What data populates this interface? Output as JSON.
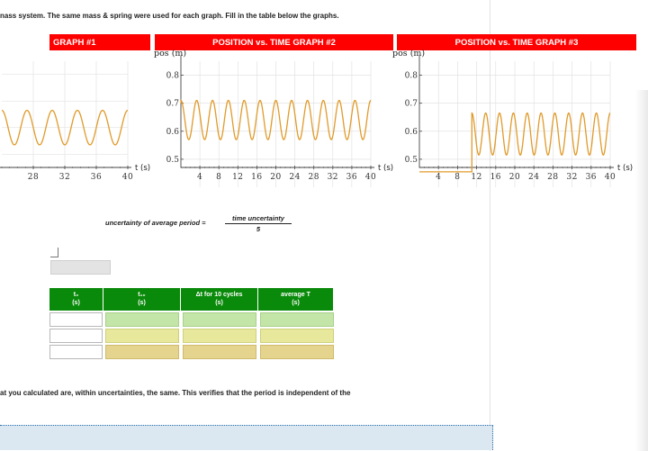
{
  "intro_text": "nass system. The same mass & spring were used for each graph. Fill in the table below the graphs.",
  "graph_headers": [
    "GRAPH #1",
    "POSITION vs. TIME GRAPH #2",
    "POSITION vs. TIME GRAPH #3"
  ],
  "header_color": "#ff0000",
  "trace_color": "#e09a2a",
  "chart_data": [
    {
      "type": "line",
      "title": "GRAPH #1",
      "xlabel": "t (s)",
      "x_ticks": [
        "28",
        "32",
        "36",
        "40"
      ],
      "xlim": [
        24,
        40
      ],
      "ylim": [
        0.45,
        0.85
      ],
      "series": [
        {
          "x_start": 24,
          "x_end": 40,
          "center": 0.6,
          "amplitude": 0.065,
          "cycles": 5
        }
      ],
      "grid": true
    },
    {
      "type": "line",
      "title": "POSITION vs. TIME GRAPH #2",
      "ylabel": "pos (m)",
      "xlabel": "t (s)",
      "y_ticks": [
        "0.8",
        "0.7",
        "0.6",
        "0.5"
      ],
      "x_ticks": [
        "4",
        "8",
        "12",
        "16",
        "20",
        "24",
        "28",
        "32",
        "36",
        "40"
      ],
      "xlim": [
        0,
        40
      ],
      "ylim": [
        0.4,
        0.85
      ],
      "series": [
        {
          "x_start": 0,
          "x_end": 40,
          "center": 0.64,
          "amplitude": 0.07,
          "cycles": 12,
          "start_value": 0.7
        }
      ],
      "grid": true
    },
    {
      "type": "line",
      "title": "POSITION vs. TIME GRAPH #3",
      "ylabel": "pos (m)",
      "xlabel": "t (s)",
      "y_ticks": [
        "0.8",
        "0.7",
        "0.6",
        "0.5"
      ],
      "x_ticks": [
        "4",
        "8",
        "12",
        "16",
        "20",
        "24",
        "28",
        "32",
        "36",
        "40"
      ],
      "xlim": [
        0,
        40
      ],
      "ylim": [
        0.4,
        0.85
      ],
      "series": [
        {
          "flat_value": 0.455,
          "flat_end": 11,
          "x_start": 11,
          "x_end": 40,
          "center": 0.59,
          "amplitude": 0.075,
          "cycles": 10
        }
      ],
      "grid": true
    }
  ],
  "formula": {
    "lhs": "uncertainty of average period =",
    "numerator": "time uncertainty",
    "denominator": "5"
  },
  "table": {
    "headers": [
      {
        "line1": "t₀",
        "line2": "(s)"
      },
      {
        "line1": "t₁₀",
        "line2": "(s)"
      },
      {
        "line1": "Δt for 10 cycles",
        "line2": "(s)"
      },
      {
        "line1": "average T",
        "line2": "(s)"
      }
    ]
  },
  "conclusion_text": "at you calculated are, within uncertainties, the same. This verifies that the period is independent of the"
}
